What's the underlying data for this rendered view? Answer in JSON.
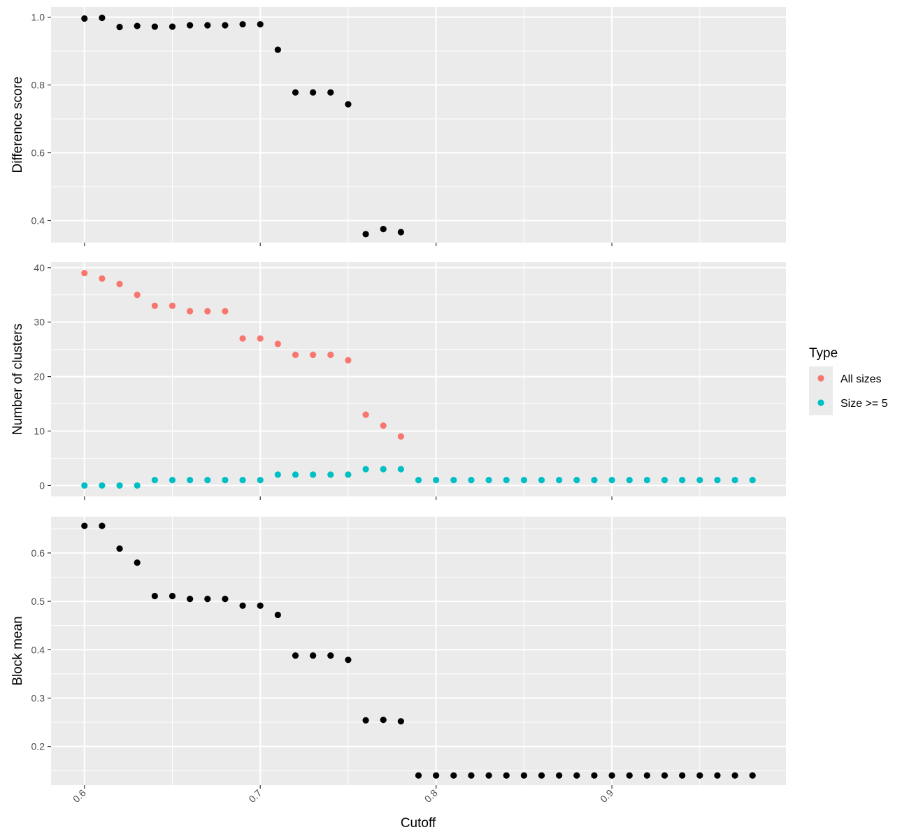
{
  "chart_data": {
    "type": "scatter",
    "xlabel": "Cutoff",
    "xlim": [
      0.581,
      0.999
    ],
    "x_ticks": [
      "0.6",
      "0.7",
      "0.8",
      "0.9"
    ],
    "x_tick_values": [
      0.6,
      0.7,
      0.8,
      0.9
    ],
    "panel_background": "#ebebeb",
    "grid": true,
    "panels": [
      {
        "ylabel": "Difference score",
        "ylim": [
          0.335,
          1.03
        ],
        "y_ticks": [
          "0.4",
          "0.6",
          "0.8",
          "1.0"
        ],
        "y_tick_values": [
          0.4,
          0.6,
          0.8,
          1.0
        ],
        "series": [
          {
            "color": "#000000",
            "x": [
              0.6,
              0.61,
              0.62,
              0.63,
              0.64,
              0.65,
              0.66,
              0.67,
              0.68,
              0.69,
              0.7,
              0.71,
              0.72,
              0.73,
              0.74,
              0.75,
              0.76,
              0.77,
              0.78
            ],
            "y": [
              0.996,
              0.998,
              0.971,
              0.974,
              0.972,
              0.972,
              0.976,
              0.976,
              0.976,
              0.979,
              0.979,
              0.904,
              0.778,
              0.778,
              0.778,
              0.743,
              0.36,
              0.375,
              0.366
            ]
          }
        ]
      },
      {
        "ylabel": "Number of clusters",
        "ylim": [
          -2,
          41
        ],
        "y_ticks": [
          "0",
          "10",
          "20",
          "30",
          "40"
        ],
        "y_tick_values": [
          0,
          10,
          20,
          30,
          40
        ],
        "series": [
          {
            "name": "All sizes",
            "color": "#f8766d",
            "x": [
              0.6,
              0.61,
              0.62,
              0.63,
              0.64,
              0.65,
              0.66,
              0.67,
              0.68,
              0.69,
              0.7,
              0.71,
              0.72,
              0.73,
              0.74,
              0.75,
              0.76,
              0.77,
              0.78
            ],
            "y": [
              39,
              38,
              37,
              35,
              33,
              33,
              32,
              32,
              32,
              27,
              27,
              26,
              24,
              24,
              24,
              23,
              13,
              11,
              9
            ]
          },
          {
            "name": "Size >= 5",
            "color": "#00bfc4",
            "x": [
              0.6,
              0.61,
              0.62,
              0.63,
              0.64,
              0.65,
              0.66,
              0.67,
              0.68,
              0.69,
              0.7,
              0.71,
              0.72,
              0.73,
              0.74,
              0.75,
              0.76,
              0.77,
              0.78,
              0.79,
              0.8,
              0.81,
              0.82,
              0.83,
              0.84,
              0.85,
              0.86,
              0.87,
              0.88,
              0.89,
              0.9,
              0.91,
              0.92,
              0.93,
              0.94,
              0.95,
              0.96,
              0.97,
              0.98
            ],
            "y": [
              0,
              0,
              0,
              0,
              1,
              1,
              1,
              1,
              1,
              1,
              1,
              2,
              2,
              2,
              2,
              2,
              3,
              3,
              3,
              1,
              1,
              1,
              1,
              1,
              1,
              1,
              1,
              1,
              1,
              1,
              1,
              1,
              1,
              1,
              1,
              1,
              1,
              1,
              1
            ]
          }
        ]
      },
      {
        "ylabel": "Block mean",
        "ylim": [
          0.12,
          0.675
        ],
        "y_ticks": [
          "0.2",
          "0.3",
          "0.4",
          "0.5",
          "0.6"
        ],
        "y_tick_values": [
          0.2,
          0.3,
          0.4,
          0.5,
          0.6
        ],
        "series": [
          {
            "color": "#000000",
            "x": [
              0.6,
              0.61,
              0.62,
              0.63,
              0.64,
              0.65,
              0.66,
              0.67,
              0.68,
              0.69,
              0.7,
              0.71,
              0.72,
              0.73,
              0.74,
              0.75,
              0.76,
              0.77,
              0.78,
              0.79,
              0.8,
              0.81,
              0.82,
              0.83,
              0.84,
              0.85,
              0.86,
              0.87,
              0.88,
              0.89,
              0.9,
              0.91,
              0.92,
              0.93,
              0.94,
              0.95,
              0.96,
              0.97,
              0.98
            ],
            "y": [
              0.656,
              0.656,
              0.609,
              0.58,
              0.511,
              0.511,
              0.505,
              0.505,
              0.505,
              0.491,
              0.491,
              0.472,
              0.388,
              0.388,
              0.388,
              0.379,
              0.254,
              0.255,
              0.252,
              0.14,
              0.14,
              0.14,
              0.14,
              0.14,
              0.14,
              0.14,
              0.14,
              0.14,
              0.14,
              0.14,
              0.14,
              0.14,
              0.14,
              0.14,
              0.14,
              0.14,
              0.14,
              0.14,
              0.14
            ]
          }
        ]
      }
    ],
    "legend": {
      "title": "Type",
      "placement": "right",
      "entries": [
        {
          "label": "All sizes",
          "color": "#f8766d"
        },
        {
          "label": "Size >= 5",
          "color": "#00bfc4"
        }
      ]
    }
  }
}
